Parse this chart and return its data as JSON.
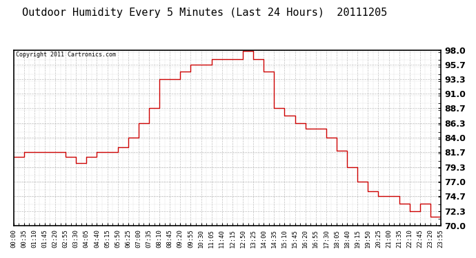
{
  "title": "Outdoor Humidity Every 5 Minutes (Last 24 Hours)  20111205",
  "copyright_text": "Copyright 2011 Cartronics.com",
  "line_color": "#cc0000",
  "bg_color": "#ffffff",
  "grid_color": "#b0b0b0",
  "ylim": [
    70.0,
    98.0
  ],
  "yticks": [
    70.0,
    72.3,
    74.7,
    77.0,
    79.3,
    81.7,
    84.0,
    86.3,
    88.7,
    91.0,
    93.3,
    95.7,
    98.0
  ],
  "title_fontsize": 11,
  "xlabel_fontsize": 6.5,
  "ylabel_fontsize": 9,
  "time_labels": [
    "00:00",
    "00:35",
    "01:10",
    "01:45",
    "02:20",
    "02:55",
    "03:30",
    "04:05",
    "04:40",
    "05:15",
    "05:50",
    "06:25",
    "07:00",
    "07:35",
    "08:10",
    "08:45",
    "09:20",
    "09:55",
    "10:30",
    "11:05",
    "11:40",
    "12:15",
    "12:50",
    "13:25",
    "14:00",
    "14:35",
    "15:10",
    "15:45",
    "16:20",
    "16:55",
    "17:30",
    "18:05",
    "18:40",
    "19:15",
    "19:50",
    "20:25",
    "21:00",
    "21:35",
    "22:10",
    "22:45",
    "23:20",
    "23:55"
  ],
  "humidity_values": [
    81.0,
    81.7,
    81.7,
    81.7,
    81.7,
    81.0,
    80.0,
    81.0,
    81.7,
    81.7,
    82.5,
    84.0,
    86.3,
    88.7,
    93.3,
    93.3,
    94.5,
    95.7,
    95.7,
    96.5,
    96.5,
    96.5,
    97.8,
    96.5,
    94.5,
    88.7,
    87.5,
    86.3,
    85.5,
    85.5,
    84.0,
    82.0,
    79.3,
    77.0,
    75.5,
    74.7,
    74.7,
    73.5,
    72.3,
    73.5,
    71.5,
    72.3
  ]
}
